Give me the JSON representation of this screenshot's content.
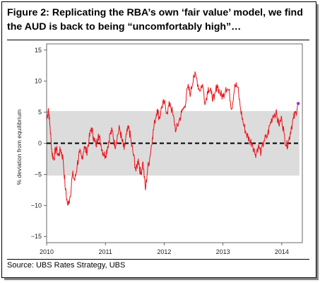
{
  "title": "Figure 2: Replicating the RBA’s own ‘fair value’ model, we find the AUD is back to being “uncomfortably high”…",
  "source": "Source: UBS Rates Strategy, UBS",
  "chart_data": {
    "type": "line",
    "title": "",
    "xlabel": "",
    "ylabel": "% deviation from equilibrium",
    "xlim": [
      2010,
      2014.35
    ],
    "ylim": [
      -16,
      16
    ],
    "x_ticks": [
      2010,
      2011,
      2012,
      2013,
      2014
    ],
    "x_tick_labels": [
      "2010",
      "2011",
      "2012",
      "2013",
      "2014"
    ],
    "y_ticks": [
      15,
      10,
      5,
      0,
      -5,
      -10,
      -15
    ],
    "y_tick_labels": [
      "15",
      "10",
      "5",
      "0",
      "−5",
      "−10",
      "−15"
    ],
    "band": {
      "from": -5.2,
      "to": 5.2,
      "x_start": 2010.0,
      "x_end": 2014.3,
      "color": "#dcdcdc"
    },
    "reference_line": {
      "y": 0,
      "style": "dashed",
      "color": "#000000"
    },
    "line_color": "#e8141b",
    "last_point_color": "#9b30d0",
    "series": [
      {
        "x": [
          2010.0,
          2010.03,
          2010.06,
          2010.09,
          2010.12,
          2010.16,
          2010.2,
          2010.24,
          2010.28,
          2010.32,
          2010.36,
          2010.4,
          2010.44,
          2010.48,
          2010.52,
          2010.56,
          2010.6,
          2010.64,
          2010.68,
          2010.72,
          2010.76,
          2010.8,
          2010.84,
          2010.88,
          2010.92,
          2010.96,
          2011.0,
          2011.04,
          2011.08,
          2011.12,
          2011.16,
          2011.2,
          2011.24,
          2011.28,
          2011.32,
          2011.36,
          2011.4,
          2011.44,
          2011.48,
          2011.52,
          2011.56,
          2011.6,
          2011.64,
          2011.68,
          2011.72,
          2011.76,
          2011.8,
          2011.84,
          2011.88,
          2011.92,
          2011.96,
          2012.0,
          2012.05,
          2012.1,
          2012.15,
          2012.2,
          2012.25,
          2012.3,
          2012.35,
          2012.4,
          2012.45,
          2012.5,
          2012.55,
          2012.6,
          2012.65,
          2012.7,
          2012.75,
          2012.8,
          2012.85,
          2012.9,
          2012.95,
          2013.0,
          2013.05,
          2013.1,
          2013.15,
          2013.2,
          2013.25,
          2013.3,
          2013.35,
          2013.4,
          2013.45,
          2013.5,
          2013.55,
          2013.6,
          2013.65,
          2013.7,
          2013.75,
          2013.8,
          2013.85,
          2013.9,
          2013.95,
          2014.0,
          2014.04,
          2014.08,
          2014.12,
          2014.16,
          2014.2,
          2014.24,
          2014.28
        ],
        "values": [
          3.8,
          5.6,
          2.5,
          -1.5,
          -2.5,
          -0.8,
          -2.0,
          -1.0,
          -2.5,
          -7.5,
          -10.0,
          -8.5,
          -5.0,
          -6.0,
          -3.5,
          -1.5,
          -2.5,
          -0.5,
          -1.5,
          0.5,
          2.5,
          1.0,
          -0.5,
          1.5,
          0.0,
          -1.5,
          -2.0,
          -0.5,
          1.5,
          2.0,
          -0.5,
          1.0,
          2.5,
          0.5,
          -1.0,
          1.5,
          2.5,
          0.0,
          -2.0,
          -4.5,
          -2.5,
          -5.0,
          -3.0,
          -7.5,
          -4.0,
          -2.0,
          1.0,
          3.5,
          5.5,
          4.0,
          6.0,
          6.5,
          5.0,
          6.5,
          4.5,
          2.0,
          3.5,
          5.0,
          6.0,
          9.0,
          8.0,
          11.0,
          10.5,
          8.5,
          9.5,
          6.5,
          9.0,
          8.0,
          7.0,
          9.5,
          8.0,
          7.5,
          9.0,
          8.5,
          5.5,
          9.5,
          9.0,
          5.5,
          3.0,
          1.5,
          0.5,
          0.0,
          -1.8,
          -0.5,
          -1.5,
          0.5,
          1.0,
          3.0,
          4.5,
          5.0,
          3.0,
          4.0,
          1.5,
          -0.5,
          0.5,
          2.5,
          4.0,
          5.0,
          6.4
        ]
      }
    ]
  }
}
